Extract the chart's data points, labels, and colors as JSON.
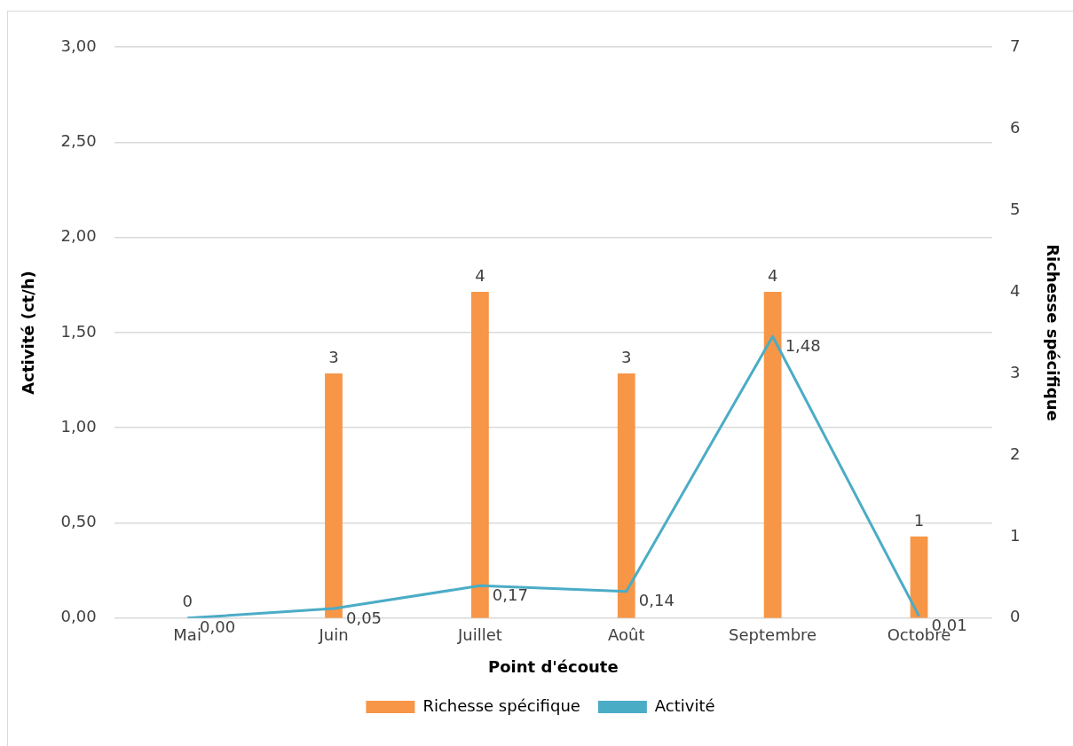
{
  "chart_data": {
    "type": "bar",
    "xlabel": "Point d'écoute",
    "ylabel": "Activité (ct/h)",
    "y2label": "Richesse spécifique",
    "categories": [
      "Mai",
      "Juin",
      "Juillet",
      "Août",
      "Septembre",
      "Octobre"
    ],
    "series": [
      {
        "name": "Richesse spécifique",
        "axis": "y2",
        "color": "#f79646",
        "values": [
          0,
          3,
          4,
          3,
          4,
          1
        ],
        "value_labels": [
          "0",
          "3",
          "4",
          "3",
          "4",
          "1"
        ]
      },
      {
        "name": "Activité",
        "type": "line",
        "color": "#4bacc6",
        "values": [
          0.0,
          0.05,
          0.17,
          0.14,
          1.48,
          0.01
        ],
        "value_labels": [
          "0,00",
          "0,05",
          "0,17",
          "0,14",
          "1,48",
          "0,01"
        ]
      }
    ],
    "ylim": [
      0,
      3
    ],
    "yticks": [
      {
        "value": 0,
        "label": "0,00"
      },
      {
        "value": 0.5,
        "label": "0,50"
      },
      {
        "value": 1,
        "label": "1,00"
      },
      {
        "value": 1.5,
        "label": "1,50"
      },
      {
        "value": 2,
        "label": "2,00"
      },
      {
        "value": 2.5,
        "label": "2,50"
      },
      {
        "value": 3,
        "label": "3,00"
      }
    ],
    "y2lim": [
      0,
      7
    ],
    "y2ticks": [
      0,
      1,
      2,
      3,
      4,
      5,
      6,
      7
    ],
    "grid": "y",
    "legend": "bottom",
    "marker": "none",
    "line_style": "solid"
  }
}
